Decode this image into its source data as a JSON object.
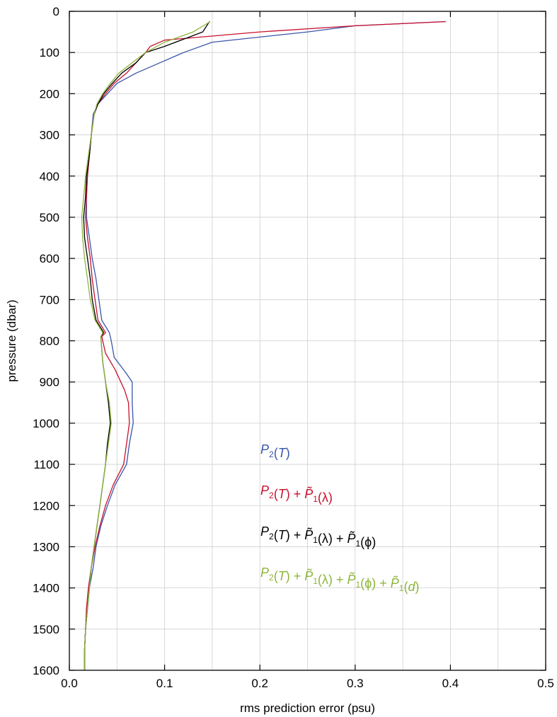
{
  "chart_data": {
    "type": "line",
    "title": "",
    "xlabel": "rms prediction error (psu)",
    "ylabel": "pressure (dbar)",
    "xlim": [
      0.0,
      0.5
    ],
    "ylim": [
      0,
      1600
    ],
    "y_inverted": true,
    "grid": true,
    "x_ticks": [
      "0.0",
      "0.1",
      "0.2",
      "0.3",
      "0.4",
      "0.5"
    ],
    "y_ticks": [
      "0",
      "100",
      "200",
      "300",
      "400",
      "500",
      "600",
      "700",
      "800",
      "900",
      "1000",
      "1100",
      "1200",
      "1300",
      "1400",
      "1500",
      "1600"
    ],
    "legend_placement": "lower-right",
    "series": [
      {
        "name": "P2(T)",
        "color": "#3b55a8",
        "points": [
          [
            0.395,
            25
          ],
          [
            0.3,
            35
          ],
          [
            0.25,
            50
          ],
          [
            0.15,
            75
          ],
          [
            0.12,
            100
          ],
          [
            0.095,
            125
          ],
          [
            0.07,
            150
          ],
          [
            0.05,
            175
          ],
          [
            0.04,
            200
          ],
          [
            0.03,
            225
          ],
          [
            0.025,
            250
          ],
          [
            0.023,
            300
          ],
          [
            0.021,
            350
          ],
          [
            0.019,
            400
          ],
          [
            0.018,
            450
          ],
          [
            0.018,
            500
          ],
          [
            0.021,
            550
          ],
          [
            0.024,
            600
          ],
          [
            0.028,
            650
          ],
          [
            0.031,
            700
          ],
          [
            0.034,
            750
          ],
          [
            0.042,
            780
          ],
          [
            0.044,
            800
          ],
          [
            0.047,
            840
          ],
          [
            0.06,
            880
          ],
          [
            0.066,
            900
          ],
          [
            0.066,
            950
          ],
          [
            0.067,
            1000
          ],
          [
            0.063,
            1050
          ],
          [
            0.06,
            1100
          ],
          [
            0.048,
            1150
          ],
          [
            0.04,
            1200
          ],
          [
            0.033,
            1250
          ],
          [
            0.028,
            1300
          ],
          [
            0.025,
            1350
          ],
          [
            0.021,
            1400
          ],
          [
            0.019,
            1450
          ],
          [
            0.017,
            1500
          ],
          [
            0.016,
            1550
          ],
          [
            0.016,
            1600
          ]
        ]
      },
      {
        "name": "P2(T) + P1(λ)",
        "color": "#c8102e",
        "points": [
          [
            0.395,
            25
          ],
          [
            0.3,
            35
          ],
          [
            0.2,
            50
          ],
          [
            0.1,
            70
          ],
          [
            0.085,
            85
          ],
          [
            0.08,
            100
          ],
          [
            0.07,
            125
          ],
          [
            0.06,
            150
          ],
          [
            0.047,
            175
          ],
          [
            0.038,
            200
          ],
          [
            0.03,
            225
          ],
          [
            0.026,
            250
          ],
          [
            0.023,
            300
          ],
          [
            0.021,
            350
          ],
          [
            0.019,
            400
          ],
          [
            0.018,
            450
          ],
          [
            0.017,
            500
          ],
          [
            0.019,
            550
          ],
          [
            0.022,
            600
          ],
          [
            0.024,
            650
          ],
          [
            0.027,
            700
          ],
          [
            0.03,
            750
          ],
          [
            0.038,
            780
          ],
          [
            0.034,
            790
          ],
          [
            0.038,
            830
          ],
          [
            0.048,
            870
          ],
          [
            0.058,
            920
          ],
          [
            0.062,
            950
          ],
          [
            0.063,
            1000
          ],
          [
            0.06,
            1050
          ],
          [
            0.057,
            1100
          ],
          [
            0.046,
            1150
          ],
          [
            0.038,
            1200
          ],
          [
            0.032,
            1250
          ],
          [
            0.027,
            1300
          ],
          [
            0.023,
            1350
          ],
          [
            0.02,
            1400
          ],
          [
            0.018,
            1450
          ],
          [
            0.017,
            1500
          ],
          [
            0.016,
            1550
          ],
          [
            0.016,
            1600
          ]
        ]
      },
      {
        "name": "P2(T) + P1(λ) + P1(φ)",
        "color": "#000000",
        "points": [
          [
            0.147,
            25
          ],
          [
            0.14,
            50
          ],
          [
            0.1,
            85
          ],
          [
            0.08,
            100
          ],
          [
            0.07,
            125
          ],
          [
            0.055,
            150
          ],
          [
            0.045,
            175
          ],
          [
            0.036,
            200
          ],
          [
            0.03,
            225
          ],
          [
            0.026,
            250
          ],
          [
            0.023,
            300
          ],
          [
            0.021,
            350
          ],
          [
            0.018,
            400
          ],
          [
            0.017,
            450
          ],
          [
            0.015,
            500
          ],
          [
            0.016,
            550
          ],
          [
            0.019,
            600
          ],
          [
            0.022,
            650
          ],
          [
            0.024,
            700
          ],
          [
            0.028,
            750
          ],
          [
            0.036,
            780
          ],
          [
            0.033,
            790
          ],
          [
            0.035,
            850
          ],
          [
            0.038,
            900
          ],
          [
            0.041,
            950
          ],
          [
            0.043,
            1000
          ],
          [
            0.04,
            1050
          ],
          [
            0.038,
            1100
          ],
          [
            0.035,
            1150
          ],
          [
            0.032,
            1200
          ],
          [
            0.029,
            1250
          ],
          [
            0.026,
            1300
          ],
          [
            0.023,
            1350
          ],
          [
            0.021,
            1400
          ],
          [
            0.019,
            1450
          ],
          [
            0.017,
            1500
          ],
          [
            0.016,
            1550
          ],
          [
            0.016,
            1600
          ]
        ]
      },
      {
        "name": "P2(T) + P1(λ) + P1(φ) + P1(d)",
        "color": "#8db53c",
        "points": [
          [
            0.148,
            25
          ],
          [
            0.13,
            50
          ],
          [
            0.1,
            75
          ],
          [
            0.08,
            100
          ],
          [
            0.066,
            125
          ],
          [
            0.052,
            150
          ],
          [
            0.043,
            175
          ],
          [
            0.035,
            200
          ],
          [
            0.029,
            225
          ],
          [
            0.026,
            250
          ],
          [
            0.023,
            300
          ],
          [
            0.02,
            350
          ],
          [
            0.017,
            400
          ],
          [
            0.015,
            450
          ],
          [
            0.013,
            500
          ],
          [
            0.014,
            550
          ],
          [
            0.016,
            600
          ],
          [
            0.019,
            650
          ],
          [
            0.022,
            700
          ],
          [
            0.027,
            750
          ],
          [
            0.035,
            780
          ],
          [
            0.033,
            790
          ],
          [
            0.035,
            850
          ],
          [
            0.038,
            900
          ],
          [
            0.042,
            950
          ],
          [
            0.044,
            1000
          ],
          [
            0.041,
            1050
          ],
          [
            0.038,
            1100
          ],
          [
            0.035,
            1150
          ],
          [
            0.032,
            1200
          ],
          [
            0.029,
            1250
          ],
          [
            0.026,
            1300
          ],
          [
            0.023,
            1350
          ],
          [
            0.021,
            1400
          ],
          [
            0.019,
            1450
          ],
          [
            0.017,
            1500
          ],
          [
            0.016,
            1550
          ],
          [
            0.016,
            1600
          ]
        ]
      }
    ]
  },
  "legend": {
    "entries": [
      {
        "color": "#3b55a8",
        "parts": [
          [
            "P",
            1
          ],
          [
            "2",
            2
          ],
          [
            "(",
            0
          ],
          [
            "T",
            1
          ],
          [
            ")",
            0
          ]
        ]
      },
      {
        "color": "#c8102e",
        "parts": [
          [
            "P",
            1
          ],
          [
            "2",
            2
          ],
          [
            "(",
            0
          ],
          [
            "T",
            1
          ],
          [
            ") + ",
            0
          ],
          [
            "P̃",
            1
          ],
          [
            "1",
            2
          ],
          [
            "(λ)",
            0
          ]
        ]
      },
      {
        "color": "#000000",
        "parts": [
          [
            "P",
            1
          ],
          [
            "2",
            2
          ],
          [
            "(",
            0
          ],
          [
            "T",
            1
          ],
          [
            ") + ",
            0
          ],
          [
            "P̃",
            1
          ],
          [
            "1",
            2
          ],
          [
            "(λ) + ",
            0
          ],
          [
            "P̃",
            1
          ],
          [
            "1",
            2
          ],
          [
            "(ϕ)",
            0
          ]
        ]
      },
      {
        "color": "#8db53c",
        "parts": [
          [
            "P",
            1
          ],
          [
            "2",
            2
          ],
          [
            "(",
            0
          ],
          [
            "T",
            1
          ],
          [
            ") + ",
            0
          ],
          [
            "P̃",
            1
          ],
          [
            "1",
            2
          ],
          [
            "(λ) + ",
            0
          ],
          [
            "P̃",
            1
          ],
          [
            "1",
            2
          ],
          [
            "(ϕ) + ",
            0
          ],
          [
            "P̃",
            1
          ],
          [
            "1",
            2
          ],
          [
            "(",
            0
          ],
          [
            "d",
            1
          ],
          [
            ")",
            0
          ]
        ]
      }
    ]
  }
}
